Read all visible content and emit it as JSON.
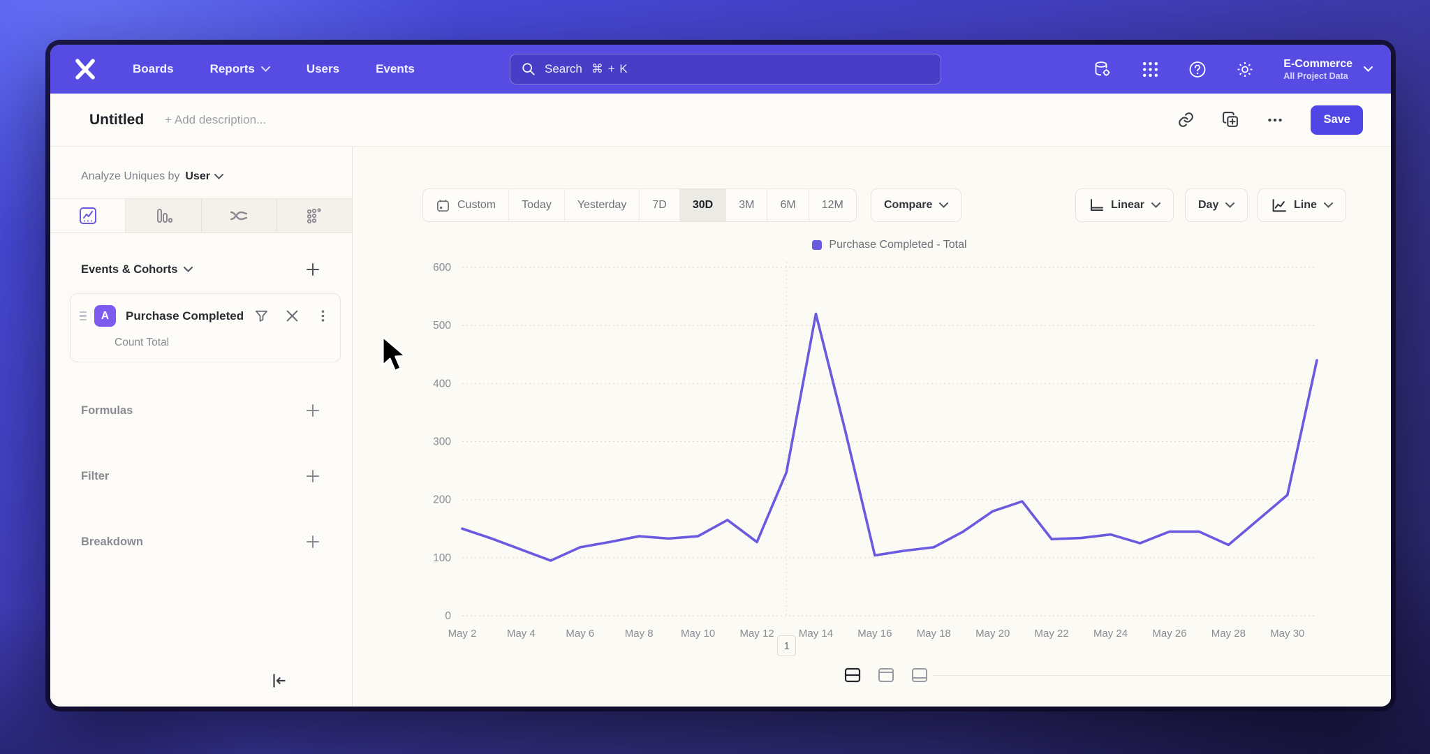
{
  "nav": {
    "items": [
      "Boards",
      "Reports",
      "Users",
      "Events"
    ],
    "search": {
      "placeholder": "Search",
      "shortcut": "⌘ + K"
    },
    "project": {
      "name": "E-Commerce",
      "scope": "All Project Data"
    }
  },
  "title_bar": {
    "title": "Untitled",
    "description_placeholder": "+ Add description...",
    "save_label": "Save"
  },
  "sidebar": {
    "analyze_prefix": "Analyze Uniques by",
    "analyze_value": "User",
    "events_header": "Events & Cohorts",
    "event_card": {
      "badge": "A",
      "name": "Purchase Completed",
      "metric": "Count Total"
    },
    "rows": [
      {
        "label": "Formulas"
      },
      {
        "label": "Filter"
      },
      {
        "label": "Breakdown"
      }
    ]
  },
  "toolbar": {
    "ranges": [
      "Custom",
      "Today",
      "Yesterday",
      "7D",
      "30D",
      "3M",
      "6M",
      "12M"
    ],
    "active_range": "30D",
    "compare_label": "Compare",
    "scale_label": "Linear",
    "interval_label": "Day",
    "chart_type_label": "Line"
  },
  "chart_data": {
    "type": "line",
    "x": [
      "May 2",
      "May 3",
      "May 4",
      "May 5",
      "May 6",
      "May 7",
      "May 8",
      "May 9",
      "May 10",
      "May 11",
      "May 12",
      "May 13",
      "May 14",
      "May 15",
      "May 16",
      "May 17",
      "May 18",
      "May 19",
      "May 20",
      "May 21",
      "May 22",
      "May 23",
      "May 24",
      "May 25",
      "May 26",
      "May 27",
      "May 28",
      "May 29",
      "May 30",
      "May 31"
    ],
    "series": [
      {
        "name": "Purchase Completed - Total",
        "color": "#6a5ae0",
        "values": [
          150,
          133,
          114,
          95,
          118,
          127,
          137,
          133,
          137,
          165,
          127,
          247,
          520,
          318,
          104,
          112,
          118,
          145,
          180,
          197,
          132,
          134,
          140,
          125,
          145,
          145,
          122,
          165,
          208,
          440
        ]
      }
    ],
    "ylim": [
      0,
      600
    ],
    "yticks": [
      0,
      100,
      200,
      300,
      400,
      500,
      600
    ],
    "x_tick_step": 2,
    "grid": "dotted-horizontal",
    "legend_position": "top-center",
    "annotation_vline_x": "May 13",
    "pagination_label": "1"
  },
  "footer": {
    "layout_options": [
      "split-rows",
      "panel-top",
      "panel-bottom"
    ],
    "active_option": "split-rows"
  },
  "colors": {
    "nav_bg": "#564ce4",
    "accent": "#4f46e5",
    "line": "#6a5ae0",
    "badge": "#7d5bee"
  }
}
